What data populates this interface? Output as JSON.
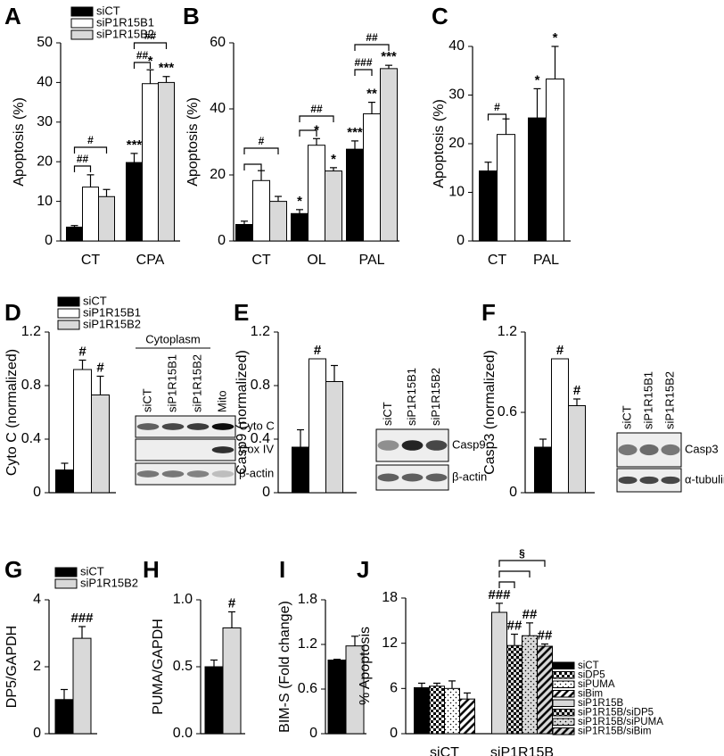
{
  "chart_data": [
    {
      "type": "bar",
      "panel": "A",
      "ylabel": "Apoptosis (%)",
      "categories": [
        "CT",
        "CPA"
      ],
      "ylim": [
        0,
        50
      ],
      "yticks": [
        0,
        10,
        20,
        30,
        40,
        50
      ],
      "legend": true,
      "series": [
        {
          "name": "siCT",
          "color": "#000000",
          "values": [
            3.5,
            19.8
          ],
          "errors": [
            0.4,
            2.3
          ],
          "significance": [
            null,
            "***"
          ]
        },
        {
          "name": "siP1R15B1",
          "color": "#ffffff",
          "values": [
            13.6,
            39.7
          ],
          "errors": [
            3.1,
            3.5
          ],
          "significance": [
            null,
            "*"
          ]
        },
        {
          "name": "siP1R15B2",
          "color": "#d9d9d9",
          "values": [
            11.2,
            40
          ],
          "errors": [
            1.8,
            1.5
          ],
          "significance": [
            null,
            "***"
          ]
        }
      ],
      "brackets": [
        "##",
        "#",
        "##",
        "##"
      ]
    },
    {
      "type": "bar",
      "panel": "B",
      "ylabel": "Apoptosis (%)",
      "categories": [
        "CT",
        "OL",
        "PAL"
      ],
      "ylim": [
        0,
        60
      ],
      "yticks": [
        0,
        20,
        40,
        60
      ],
      "series": [
        {
          "color": "#000000",
          "values": [
            5,
            8.3,
            27.8
          ],
          "errors": [
            1,
            1.2,
            2.5
          ],
          "significance": [
            null,
            "*",
            "***"
          ]
        },
        {
          "color": "#ffffff",
          "values": [
            18.3,
            29,
            38.5
          ],
          "errors": [
            3,
            2,
            3.5
          ],
          "significance": [
            null,
            "*",
            "**"
          ]
        },
        {
          "color": "#d9d9d9",
          "values": [
            12,
            21.2,
            52.2
          ],
          "errors": [
            1.5,
            1,
            1
          ],
          "significance": [
            null,
            "*",
            "***"
          ]
        }
      ],
      "brackets": [
        "#",
        "##",
        "###",
        "##"
      ]
    },
    {
      "type": "bar",
      "panel": "C",
      "ylabel": "Apoptosis (%)",
      "categories": [
        "CT",
        "PAL"
      ],
      "ylim": [
        0,
        40
      ],
      "yticks": [
        0,
        10,
        20,
        30,
        40
      ],
      "series": [
        {
          "color": "#000000",
          "values": [
            14.4,
            25.3
          ],
          "errors": [
            1.8,
            6
          ],
          "significance": [
            null,
            "*"
          ]
        },
        {
          "color": "#ffffff",
          "values": [
            21.9,
            33.3
          ],
          "errors": [
            3.2,
            6.7
          ],
          "significance": [
            null,
            "*"
          ]
        }
      ],
      "brackets": [
        "#"
      ]
    },
    {
      "type": "bar",
      "panel": "D",
      "ylabel": "Cyto C (normalized)",
      "ylim": [
        0,
        1.2
      ],
      "yticks": [
        0,
        0.4,
        0.8,
        1.2
      ],
      "legend": true,
      "series": [
        {
          "name": "siCT",
          "color": "#000000",
          "values": [
            0.17
          ],
          "errors": [
            0.05
          ],
          "significance": [
            null
          ]
        },
        {
          "name": "siP1R15B1",
          "color": "#ffffff",
          "values": [
            0.92
          ],
          "errors": [
            0.07
          ],
          "significance": [
            "#"
          ]
        },
        {
          "name": "siP1R15B2",
          "color": "#d9d9d9",
          "values": [
            0.73
          ],
          "errors": [
            0.14
          ],
          "significance": [
            "#"
          ]
        }
      ],
      "blot": {
        "title": "Cytoplasm",
        "lanes": [
          "siCT",
          "siP1R15B1",
          "siP1R15B2",
          "Mito"
        ],
        "rows": [
          "Cyto C",
          "Cox IV",
          "β-actin"
        ]
      }
    },
    {
      "type": "bar",
      "panel": "E",
      "ylabel": "Casp9 (normalized)",
      "ylim": [
        0,
        1.2
      ],
      "yticks": [
        0,
        0.4,
        0.8,
        1.2
      ],
      "series": [
        {
          "color": "#000000",
          "values": [
            0.34
          ],
          "errors": [
            0.13
          ],
          "significance": [
            null
          ]
        },
        {
          "color": "#ffffff",
          "values": [
            1.0
          ],
          "errors": [
            null
          ],
          "significance": [
            "#"
          ]
        },
        {
          "color": "#d9d9d9",
          "values": [
            0.83
          ],
          "errors": [
            0.12
          ],
          "significance": [
            null
          ]
        }
      ],
      "blot": {
        "lanes": [
          "siCT",
          "siP1R15B1",
          "siP1R15B2"
        ],
        "rows": [
          "Casp9",
          "β-actin"
        ]
      }
    },
    {
      "type": "bar",
      "panel": "F",
      "ylabel": "Casp3 (normalized)",
      "ylim": [
        0,
        1.2
      ],
      "yticks": [
        0,
        0.6,
        1.2
      ],
      "series": [
        {
          "color": "#000000",
          "values": [
            0.34
          ],
          "errors": [
            0.06
          ],
          "significance": [
            null
          ]
        },
        {
          "color": "#ffffff",
          "values": [
            1.0
          ],
          "errors": [
            null
          ],
          "significance": [
            "#"
          ]
        },
        {
          "color": "#d9d9d9",
          "values": [
            0.65
          ],
          "errors": [
            0.05
          ],
          "significance": [
            "#"
          ]
        }
      ],
      "blot": {
        "lanes": [
          "siCT",
          "siP1R15B1",
          "siP1R15B2"
        ],
        "rows": [
          "Casp3",
          "α-tubulin"
        ]
      }
    },
    {
      "type": "bar",
      "panel": "G",
      "ylabel": "DP5/GAPDH",
      "ylim": [
        0,
        4
      ],
      "yticks": [
        0,
        2,
        4
      ],
      "legend": true,
      "series": [
        {
          "name": "siCT",
          "color": "#000000",
          "values": [
            1.02
          ],
          "errors": [
            0.3
          ],
          "significance": [
            null
          ]
        },
        {
          "name": "siP1R15B2",
          "color": "#d9d9d9",
          "values": [
            2.85
          ],
          "errors": [
            0.35
          ],
          "significance": [
            "###"
          ]
        }
      ]
    },
    {
      "type": "bar",
      "panel": "H",
      "ylabel": "PUMA/GAPDH",
      "ylim": [
        0,
        1
      ],
      "yticks": [
        {
          "value": 0,
          "label": "0.0"
        },
        0.5,
        {
          "value": 1,
          "label": "1.0"
        }
      ],
      "series": [
        {
          "color": "#000000",
          "values": [
            0.5
          ],
          "errors": [
            0.05
          ],
          "significance": [
            null
          ]
        },
        {
          "color": "#d9d9d9",
          "values": [
            0.79
          ],
          "errors": [
            0.12
          ],
          "significance": [
            "#"
          ]
        }
      ]
    },
    {
      "type": "bar",
      "panel": "I",
      "ylabel": "BIM-S (Fold change)",
      "ylim": [
        0,
        1.8
      ],
      "yticks": [
        0,
        0.6,
        1.2,
        1.8
      ],
      "series": [
        {
          "color": "#000000",
          "values": [
            0.99
          ],
          "errors": [
            0.01
          ],
          "significance": [
            null
          ]
        },
        {
          "color": "#d9d9d9",
          "values": [
            1.18
          ],
          "errors": [
            0.13
          ],
          "significance": [
            null
          ]
        }
      ]
    },
    {
      "type": "bar",
      "panel": "J",
      "ylabel": "% Apoptosis",
      "categories": [
        "siCT",
        "siP1R15B"
      ],
      "ylim": [
        0,
        18
      ],
      "yticks": [
        0,
        6,
        12,
        18
      ],
      "legend": true,
      "series": [
        {
          "name": "siCT",
          "color": "#000000",
          "pattern": "solid",
          "values": [
            6.1,
            null
          ],
          "errors": [
            0.6,
            null
          ],
          "significance": [
            null,
            null
          ]
        },
        {
          "name": "siDP5",
          "color": "#ffffff",
          "pattern": "checker",
          "values": [
            6.3,
            null
          ],
          "errors": [
            0.4,
            null
          ],
          "significance": [
            null,
            null
          ]
        },
        {
          "name": "siPUMA",
          "color": "#ffffff",
          "pattern": "dots",
          "values": [
            6,
            null
          ],
          "errors": [
            1,
            null
          ],
          "significance": [
            null,
            null
          ]
        },
        {
          "name": "siBim",
          "color": "#ffffff",
          "pattern": "hatch",
          "values": [
            4.6,
            null
          ],
          "errors": [
            0.8,
            null
          ],
          "significance": [
            null,
            null
          ]
        },
        {
          "name": "siP1R15B",
          "color": "#d9d9d9",
          "pattern": "solid",
          "values": [
            null,
            16.1
          ],
          "errors": [
            null,
            1.2
          ],
          "significance": [
            null,
            "###"
          ]
        },
        {
          "name": "siP1R15B/siDP5",
          "color": "#d9d9d9",
          "pattern": "checker",
          "values": [
            null,
            11.7
          ],
          "errors": [
            null,
            1.5
          ],
          "significance": [
            null,
            "##"
          ]
        },
        {
          "name": "siP1R15B/siPUMA",
          "color": "#d9d9d9",
          "pattern": "dots",
          "values": [
            null,
            13
          ],
          "errors": [
            null,
            1.7
          ],
          "significance": [
            null,
            "##"
          ]
        },
        {
          "name": "siP1R15B/siBim",
          "color": "#d9d9d9",
          "pattern": "hatch",
          "values": [
            null,
            11.6
          ],
          "errors": [
            null,
            0.3
          ],
          "significance": [
            null,
            "##"
          ]
        }
      ],
      "brackets": [
        "§"
      ]
    }
  ]
}
